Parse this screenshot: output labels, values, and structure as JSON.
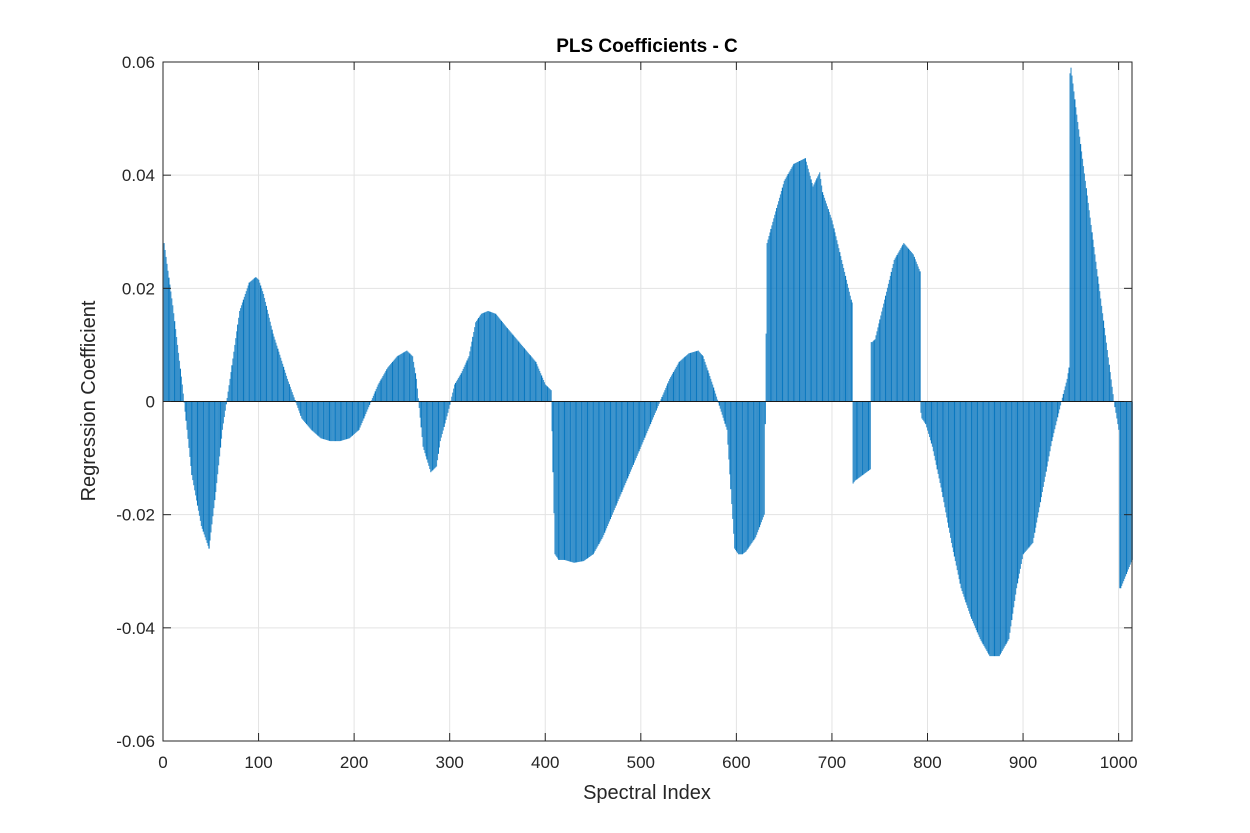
{
  "chart_data": {
    "type": "bar",
    "title": "PLS Coefficients - C",
    "xlabel": "Spectral Index",
    "ylabel": "Regression Coefficient",
    "xlim": [
      0,
      1014
    ],
    "ylim": [
      -0.06,
      0.06
    ],
    "grid": true,
    "xticks": [
      0,
      100,
      200,
      300,
      400,
      500,
      600,
      700,
      800,
      900,
      1000
    ],
    "xtick_labels": [
      "0",
      "100",
      "200",
      "300",
      "400",
      "500",
      "600",
      "700",
      "800",
      "900",
      "1000"
    ],
    "yticks": [
      -0.06,
      -0.04,
      -0.02,
      0,
      0.02,
      0.04,
      0.06
    ],
    "ytick_labels": [
      "-0.06",
      "-0.04",
      "-0.02",
      "0",
      "0.02",
      "0.04",
      "0.06"
    ],
    "color": "#0072BD",
    "x_step": 1,
    "series": [
      {
        "x": [
          1,
          10,
          20,
          25,
          30,
          40,
          48,
          55,
          62,
          70,
          80,
          90,
          97,
          100,
          105,
          115,
          130,
          145,
          155,
          165,
          175,
          185,
          195,
          205,
          215,
          225,
          235,
          245,
          255,
          261,
          265,
          272,
          280,
          286,
          290,
          298,
          305,
          312,
          320,
          327,
          333,
          340,
          348,
          360,
          375,
          390,
          400,
          406,
          410,
          414,
          420,
          430,
          440,
          450,
          460,
          480,
          500,
          520,
          530,
          540,
          550,
          560,
          565,
          575,
          590,
          598,
          602,
          606,
          610,
          620,
          629,
          632,
          640,
          650,
          660,
          672,
          680,
          687,
          690,
          700,
          710,
          720,
          721,
          722,
          724,
          740,
          741,
          742,
          745,
          755,
          765,
          775,
          785,
          792,
          793,
          794,
          798,
          805,
          815,
          825,
          835,
          845,
          855,
          865,
          875,
          885,
          893,
          900,
          910,
          920,
          930,
          940,
          946,
          948,
          949,
          950,
          955,
          965,
          975,
          985,
          995,
          998,
          1000,
          1001,
          1002,
          1014
        ],
        "y": [
          0.028,
          0.017,
          0.003,
          -0.005,
          -0.013,
          -0.022,
          -0.026,
          -0.016,
          -0.005,
          0.004,
          0.016,
          0.021,
          0.022,
          0.0215,
          0.019,
          0.012,
          0.004,
          -0.003,
          -0.005,
          -0.0065,
          -0.007,
          -0.007,
          -0.0065,
          -0.005,
          -0.001,
          0.003,
          0.006,
          0.008,
          0.009,
          0.008,
          0.004,
          -0.008,
          -0.0125,
          -0.0115,
          -0.007,
          -0.002,
          0.003,
          0.005,
          0.008,
          0.014,
          0.0155,
          0.016,
          0.0155,
          0.013,
          0.01,
          0.007,
          0.003,
          0.002,
          -0.027,
          -0.028,
          -0.028,
          -0.0285,
          -0.0282,
          -0.027,
          -0.024,
          -0.016,
          -0.008,
          0.0,
          0.004,
          0.007,
          0.0085,
          0.009,
          0.008,
          0.003,
          -0.005,
          -0.026,
          -0.027,
          -0.027,
          -0.0265,
          -0.024,
          -0.02,
          0.028,
          0.033,
          0.039,
          0.042,
          0.043,
          0.038,
          0.0405,
          0.037,
          0.032,
          0.025,
          0.018,
          0.0175,
          -0.0145,
          -0.014,
          -0.012,
          0.0105,
          0.0105,
          0.011,
          0.018,
          0.025,
          0.028,
          0.026,
          0.023,
          -0.002,
          -0.003,
          -0.004,
          -0.008,
          -0.016,
          -0.025,
          -0.033,
          -0.038,
          -0.042,
          -0.045,
          -0.045,
          -0.042,
          -0.033,
          -0.027,
          -0.025,
          -0.016,
          -0.007,
          0.0,
          0.004,
          0.006,
          0.058,
          0.059,
          0.052,
          0.039,
          0.026,
          0.013,
          0.0,
          -0.003,
          -0.005,
          -0.033,
          -0.033,
          -0.028
        ]
      }
    ]
  }
}
